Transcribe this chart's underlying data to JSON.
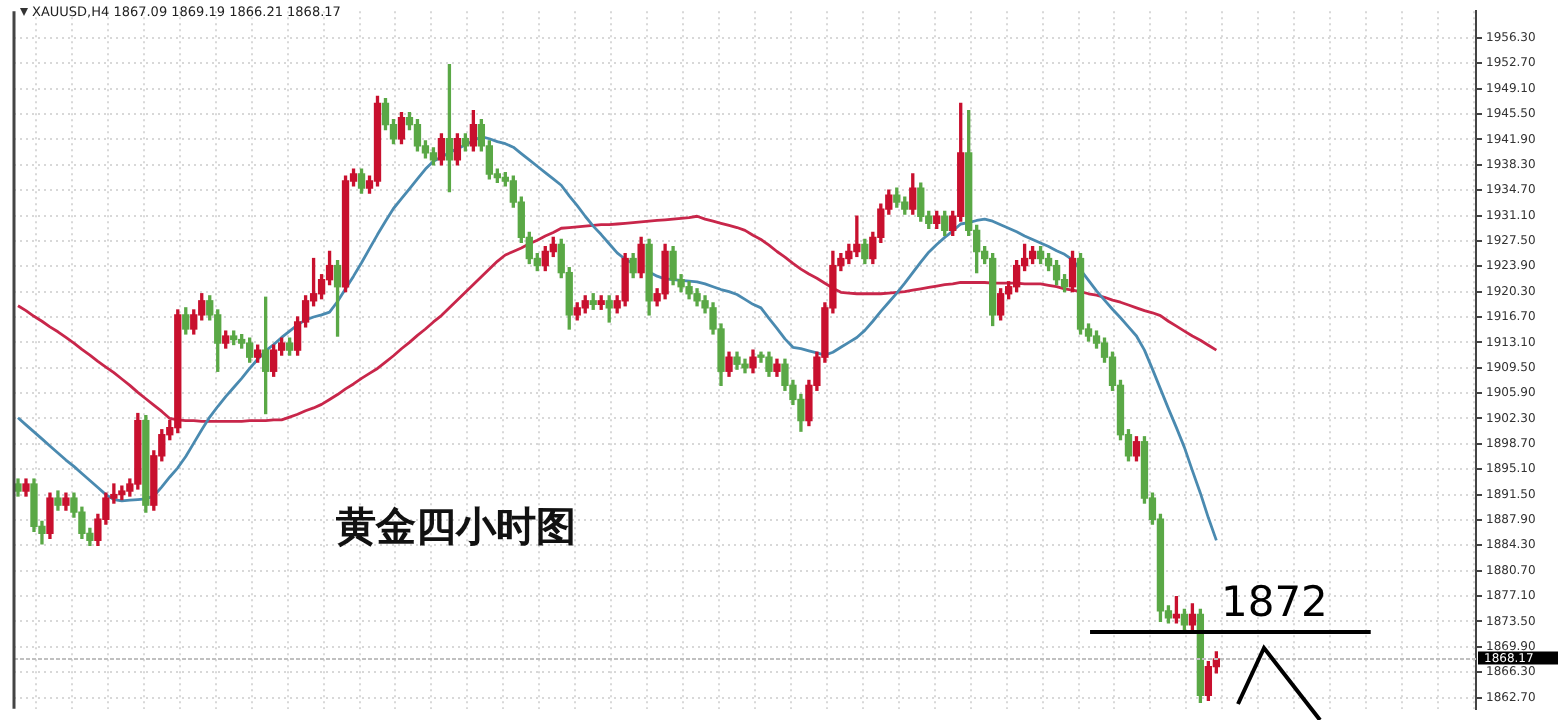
{
  "chart_data": {
    "type": "candlestick",
    "title": "XAUUSD,H4 1867.09 1869.19 1866.21 1868.17",
    "annotations": [
      "黄金四小时图"
    ],
    "categories": [
      null,
      null,
      null,
      null,
      null,
      null,
      null,
      null,
      null,
      null,
      null,
      null,
      null,
      null,
      null,
      null,
      null,
      null,
      null,
      null,
      null,
      null,
      null,
      null,
      null,
      null,
      null,
      null,
      null,
      null,
      null,
      null,
      null,
      null,
      null,
      null,
      null,
      null,
      null,
      null,
      null,
      null,
      null,
      null,
      null,
      null,
      null,
      null,
      null,
      null,
      null,
      null,
      null,
      null,
      null,
      null,
      null,
      null,
      null,
      null,
      null,
      null,
      null,
      null,
      null,
      null,
      null,
      null,
      null,
      null,
      null,
      null,
      null,
      null,
      null,
      null,
      null,
      null,
      null,
      null,
      null,
      null,
      null,
      null,
      null,
      null,
      null,
      null,
      null,
      null,
      null,
      null,
      null,
      null,
      null,
      null,
      null,
      null,
      null,
      null,
      null,
      null,
      null,
      null,
      null,
      null,
      null,
      null,
      null,
      null,
      null,
      null,
      null,
      null,
      null,
      null,
      null,
      null,
      null,
      null,
      null,
      null,
      null,
      null,
      null,
      null,
      null,
      null,
      null,
      null,
      null,
      null,
      null,
      null,
      null,
      null,
      null,
      null,
      null,
      null,
      null,
      null,
      null,
      null,
      null,
      null,
      null,
      null,
      null,
      null,
      null
    ],
    "ohlc": [
      [
        1893,
        1893.7,
        1891.3,
        1892
      ],
      [
        1892,
        1893.7,
        1891.3,
        1893
      ],
      [
        1893,
        1893.7,
        1886.3,
        1887
      ],
      [
        1887,
        1887.7,
        1884.5,
        1886
      ],
      [
        1886,
        1891.7,
        1885.3,
        1891
      ],
      [
        1891,
        1892,
        1889.3,
        1890
      ],
      [
        1890,
        1891.7,
        1889.3,
        1891
      ],
      [
        1891,
        1891.7,
        1888.3,
        1889
      ],
      [
        1889,
        1889.7,
        1885.3,
        1886
      ],
      [
        1886,
        1886.7,
        1884.3,
        1885
      ],
      [
        1885,
        1888.7,
        1884.3,
        1888
      ],
      [
        1888,
        1891.7,
        1887.3,
        1891
      ],
      [
        1891,
        1893,
        1890.3,
        1891.5
      ],
      [
        1891.5,
        1892.7,
        1890.8,
        1892
      ],
      [
        1892,
        1893.7,
        1891.3,
        1893
      ],
      [
        1893,
        1903,
        1892.3,
        1902
      ],
      [
        1902,
        1902.7,
        1889,
        1890
      ],
      [
        1890,
        1897.7,
        1889.3,
        1897
      ],
      [
        1897,
        1900.7,
        1896.3,
        1900
      ],
      [
        1900,
        1902,
        1899.3,
        1901
      ],
      [
        1901,
        1917.7,
        1900.3,
        1917
      ],
      [
        1917,
        1918,
        1914.3,
        1915
      ],
      [
        1915,
        1917.7,
        1914.3,
        1917
      ],
      [
        1917,
        1920,
        1916.3,
        1919
      ],
      [
        1919,
        1919.7,
        1916.3,
        1917
      ],
      [
        1917,
        1917.7,
        1909,
        1913
      ],
      [
        1913,
        1914.7,
        1912.3,
        1914
      ],
      [
        1914,
        1914.7,
        1912.8,
        1913.5
      ],
      [
        1913.5,
        1914.2,
        1912.3,
        1913
      ],
      [
        1913,
        1913.7,
        1910.3,
        1911
      ],
      [
        1911,
        1912.7,
        1910.3,
        1912
      ],
      [
        1912,
        1919.5,
        1903,
        1909
      ],
      [
        1909,
        1912.7,
        1908.3,
        1912
      ],
      [
        1912,
        1913.7,
        1911.3,
        1913
      ],
      [
        1913,
        1913.7,
        1911.3,
        1912
      ],
      [
        1912,
        1916.7,
        1911.3,
        1916
      ],
      [
        1916,
        1919.7,
        1915.3,
        1919
      ],
      [
        1919,
        1925,
        1918.3,
        1920
      ],
      [
        1920,
        1922.7,
        1919.3,
        1922
      ],
      [
        1922,
        1926,
        1921.3,
        1924
      ],
      [
        1924,
        1924.7,
        1914,
        1921
      ],
      [
        1921,
        1936.7,
        1920.3,
        1936
      ],
      [
        1936,
        1937.7,
        1935.3,
        1937
      ],
      [
        1937,
        1937.7,
        1934.3,
        1935
      ],
      [
        1935,
        1936.7,
        1934.3,
        1936
      ],
      [
        1936,
        1948,
        1935.3,
        1947
      ],
      [
        1947,
        1947.7,
        1943.3,
        1944
      ],
      [
        1944,
        1944.7,
        1941.3,
        1942
      ],
      [
        1942,
        1945.7,
        1941.3,
        1945
      ],
      [
        1945,
        1945.7,
        1943.3,
        1944
      ],
      [
        1944,
        1944.7,
        1940.3,
        1941
      ],
      [
        1941,
        1941.7,
        1939.3,
        1940
      ],
      [
        1940,
        1940.7,
        1938.3,
        1939
      ],
      [
        1939,
        1942.7,
        1938.3,
        1942
      ],
      [
        1942,
        1952.5,
        1934.5,
        1939
      ],
      [
        1939,
        1942.7,
        1938.3,
        1942
      ],
      [
        1942,
        1942.7,
        1940.3,
        1941
      ],
      [
        1941,
        1946,
        1940.3,
        1944
      ],
      [
        1944,
        1944.7,
        1940.3,
        1941
      ],
      [
        1941,
        1941.7,
        1936.3,
        1937
      ],
      [
        1937,
        1937.7,
        1935.8,
        1936.5
      ],
      [
        1936.5,
        1937.2,
        1935.3,
        1936
      ],
      [
        1936,
        1936.7,
        1932.3,
        1933
      ],
      [
        1933,
        1933.7,
        1927.3,
        1928
      ],
      [
        1928,
        1928.7,
        1924.3,
        1925
      ],
      [
        1925,
        1925.7,
        1923.3,
        1924
      ],
      [
        1924,
        1926.7,
        1923.3,
        1926
      ],
      [
        1926,
        1928,
        1925.3,
        1927
      ],
      [
        1927,
        1927.7,
        1922.3,
        1923
      ],
      [
        1923,
        1923.7,
        1915,
        1917
      ],
      [
        1917,
        1918.7,
        1916.3,
        1918
      ],
      [
        1918,
        1919.7,
        1917.3,
        1919
      ],
      [
        1919,
        1920,
        1917.8,
        1918.5
      ],
      [
        1918.5,
        1919.7,
        1917.8,
        1919
      ],
      [
        1919,
        1919.7,
        1916,
        1918
      ],
      [
        1918,
        1919.7,
        1917.3,
        1919
      ],
      [
        1919,
        1925.7,
        1918.3,
        1925
      ],
      [
        1925,
        1925.7,
        1922.3,
        1923
      ],
      [
        1923,
        1928,
        1922.3,
        1927
      ],
      [
        1927,
        1927.7,
        1917,
        1919
      ],
      [
        1919,
        1920.7,
        1918.3,
        1920
      ],
      [
        1920,
        1927,
        1919.3,
        1926
      ],
      [
        1926,
        1926.7,
        1921.3,
        1922
      ],
      [
        1922,
        1922.7,
        1920.3,
        1921
      ],
      [
        1921,
        1921.7,
        1919.3,
        1920
      ],
      [
        1920,
        1920.7,
        1918.3,
        1919
      ],
      [
        1919,
        1919.7,
        1917.3,
        1918
      ],
      [
        1918,
        1918.7,
        1914.3,
        1915
      ],
      [
        1915,
        1915.7,
        1907,
        1909
      ],
      [
        1909,
        1911.7,
        1908.3,
        1911
      ],
      [
        1911,
        1911.7,
        1909.3,
        1910
      ],
      [
        1910,
        1910.7,
        1908.8,
        1909.5
      ],
      [
        1909.5,
        1912,
        1908.8,
        1911
      ],
      [
        1911,
        1911.7,
        1910.3,
        1911
      ],
      [
        1911,
        1911.7,
        1908.3,
        1909
      ],
      [
        1909,
        1910.7,
        1908.3,
        1910
      ],
      [
        1910,
        1910.7,
        1906.3,
        1907
      ],
      [
        1907,
        1907.7,
        1904.3,
        1905
      ],
      [
        1905,
        1905.7,
        1900.5,
        1902
      ],
      [
        1902,
        1907.7,
        1901.3,
        1907
      ],
      [
        1907,
        1911.7,
        1906.3,
        1911
      ],
      [
        1911,
        1918.7,
        1910.3,
        1918
      ],
      [
        1918,
        1926,
        1917.3,
        1924
      ],
      [
        1924,
        1925.7,
        1923.3,
        1925
      ],
      [
        1925,
        1927,
        1924.3,
        1926
      ],
      [
        1926,
        1931,
        1925.3,
        1927
      ],
      [
        1927,
        1927.7,
        1924.3,
        1925
      ],
      [
        1925,
        1928.7,
        1924.3,
        1928
      ],
      [
        1928,
        1932.7,
        1927.3,
        1932
      ],
      [
        1932,
        1934.7,
        1931.3,
        1934
      ],
      [
        1934,
        1935,
        1932.3,
        1933
      ],
      [
        1933,
        1933.7,
        1931.3,
        1932
      ],
      [
        1932,
        1937,
        1931.3,
        1935
      ],
      [
        1935,
        1935.7,
        1930.3,
        1931
      ],
      [
        1931,
        1931.7,
        1929.3,
        1930
      ],
      [
        1930,
        1931.7,
        1929.3,
        1931
      ],
      [
        1931,
        1931.7,
        1928.3,
        1929
      ],
      [
        1929,
        1931.7,
        1928.3,
        1931
      ],
      [
        1931,
        1947,
        1930.3,
        1940
      ],
      [
        1940,
        1946,
        1928.3,
        1929
      ],
      [
        1929,
        1929.7,
        1923,
        1926
      ],
      [
        1926,
        1926.7,
        1924.3,
        1925
      ],
      [
        1925,
        1925.7,
        1915.5,
        1917
      ],
      [
        1917,
        1920.7,
        1916.3,
        1920
      ],
      [
        1920,
        1921.7,
        1919.3,
        1921
      ],
      [
        1921,
        1924.7,
        1920.3,
        1924
      ],
      [
        1924,
        1927,
        1923.3,
        1925
      ],
      [
        1925,
        1926.7,
        1924.3,
        1926
      ],
      [
        1926,
        1926.7,
        1924.3,
        1925
      ],
      [
        1925,
        1925.7,
        1923.3,
        1924
      ],
      [
        1924,
        1924.7,
        1921.3,
        1922
      ],
      [
        1922,
        1922.7,
        1920.3,
        1921
      ],
      [
        1921,
        1926,
        1920.3,
        1925
      ],
      [
        1925,
        1925.7,
        1914.3,
        1915
      ],
      [
        1915,
        1915.7,
        1913.3,
        1914
      ],
      [
        1914,
        1914.7,
        1912.3,
        1913
      ],
      [
        1913,
        1913.7,
        1910.3,
        1911
      ],
      [
        1911,
        1911.7,
        1906.3,
        1907
      ],
      [
        1907,
        1907.7,
        1899.3,
        1900
      ],
      [
        1900,
        1900.7,
        1896.3,
        1897
      ],
      [
        1897,
        1899.7,
        1896.3,
        1899
      ],
      [
        1899,
        1899.7,
        1890.3,
        1891
      ],
      [
        1891,
        1891.7,
        1887.3,
        1888
      ],
      [
        1888,
        1888.7,
        1873.5,
        1875
      ],
      [
        1875,
        1875.7,
        1873.3,
        1874
      ],
      [
        1874,
        1877,
        1873.3,
        1874.5
      ],
      [
        1874.5,
        1875.2,
        1872.3,
        1873
      ],
      [
        1873,
        1876,
        1872.3,
        1874.5
      ],
      [
        1874.5,
        1875.2,
        1862,
        1863
      ],
      [
        1863,
        1867.8,
        1862.3,
        1867.09
      ],
      [
        1867.09,
        1869.19,
        1866.21,
        1868.17
      ]
    ],
    "colors": [
      "#5aa846",
      "#c8102e",
      "#5aa846",
      "#5aa846",
      "#c8102e",
      "#5aa846",
      "#c8102e",
      "#5aa846",
      "#5aa846",
      "#5aa846",
      "#c8102e",
      "#c8102e",
      "#c8102e",
      "#c8102e",
      "#c8102e",
      "#c8102e",
      "#5aa846",
      "#c8102e",
      "#c8102e",
      "#c8102e",
      "#c8102e",
      "#5aa846",
      "#c8102e",
      "#c8102e",
      "#5aa846",
      "#5aa846",
      "#c8102e",
      "#5aa846",
      "#5aa846",
      "#5aa846",
      "#c8102e",
      "#5aa846",
      "#c8102e",
      "#c8102e",
      "#5aa846",
      "#c8102e",
      "#c8102e",
      "#c8102e",
      "#c8102e",
      "#c8102e",
      "#5aa846",
      "#c8102e",
      "#c8102e",
      "#5aa846",
      "#c8102e",
      "#c8102e",
      "#5aa846",
      "#5aa846",
      "#c8102e",
      "#5aa846",
      "#5aa846",
      "#5aa846",
      "#5aa846",
      "#c8102e",
      "#5aa846",
      "#c8102e",
      "#5aa846",
      "#c8102e",
      "#5aa846",
      "#5aa846",
      "#5aa846",
      "#5aa846",
      "#5aa846",
      "#5aa846",
      "#5aa846",
      "#5aa846",
      "#c8102e",
      "#c8102e",
      "#5aa846",
      "#5aa846",
      "#c8102e",
      "#c8102e",
      "#5aa846",
      "#c8102e",
      "#5aa846",
      "#c8102e",
      "#c8102e",
      "#5aa846",
      "#c8102e",
      "#5aa846",
      "#c8102e",
      "#c8102e",
      "#5aa846",
      "#5aa846",
      "#5aa846",
      "#5aa846",
      "#5aa846",
      "#5aa846",
      "#5aa846",
      "#c8102e",
      "#5aa846",
      "#5aa846",
      "#c8102e",
      "#5aa846",
      "#5aa846",
      "#c8102e",
      "#5aa846",
      "#5aa846",
      "#5aa846",
      "#c8102e",
      "#c8102e",
      "#c8102e",
      "#c8102e",
      "#c8102e",
      "#c8102e",
      "#c8102e",
      "#5aa846",
      "#c8102e",
      "#c8102e",
      "#c8102e",
      "#5aa846",
      "#5aa846",
      "#c8102e",
      "#5aa846",
      "#5aa846",
      "#c8102e",
      "#5aa846",
      "#c8102e",
      "#c8102e",
      "#5aa846",
      "#5aa846",
      "#5aa846",
      "#5aa846",
      "#c8102e",
      "#c8102e",
      "#c8102e",
      "#c8102e",
      "#c8102e",
      "#5aa846",
      "#5aa846",
      "#5aa846",
      "#5aa846",
      "#c8102e",
      "#5aa846",
      "#5aa846",
      "#5aa846",
      "#5aa846",
      "#5aa846",
      "#5aa846",
      "#5aa846",
      "#c8102e",
      "#5aa846",
      "#5aa846",
      "#5aa846",
      "#5aa846",
      "#c8102e",
      "#5aa846",
      "#c8102e",
      "#5aa846",
      "#c8102e",
      "#c8102e"
    ],
    "series": [
      {
        "type": "line",
        "color": "#4a8ab0",
        "values": [
          1902.4,
          1901.4,
          1900.4,
          1899.4,
          1898.4,
          1897.4,
          1896.4,
          1895.5,
          1894.5,
          1893.5,
          1892.5,
          1891.5,
          1890.8,
          1890.6,
          1890.7,
          1890.8,
          1890.9,
          1891.3,
          1892.6,
          1894,
          1895.3,
          1896.9,
          1898.8,
          1900.7,
          1902.5,
          1904,
          1905.4,
          1906.7,
          1908,
          1909.4,
          1910.7,
          1911.9,
          1912.8,
          1913.8,
          1914.7,
          1915.6,
          1916.3,
          1916.7,
          1917,
          1917.4,
          1918.9,
          1920.7,
          1922.5,
          1924.4,
          1926.4,
          1928.4,
          1930.3,
          1932.1,
          1933.5,
          1934.9,
          1936.3,
          1937.7,
          1938.8,
          1939.4,
          1940,
          1940.6,
          1941.1,
          1941.7,
          1942.3,
          1942,
          1941.6,
          1941.3,
          1940.8,
          1939.9,
          1939,
          1938.1,
          1937.2,
          1936.3,
          1935.4,
          1933.9,
          1932.5,
          1931,
          1929.6,
          1928.4,
          1927.1,
          1925.8,
          1924.9,
          1924.3,
          null,
          1923.1,
          1922.5,
          1922.1,
          1922,
          1921.9,
          1921.8,
          1921.7,
          1921.4,
          1921,
          1920.6,
          1920.3,
          1919.9,
          1919.2,
          1918.5,
          1918,
          1916.5,
          1915.1,
          1913.6,
          1912.4,
          1912.2,
          1911.9,
          1911.6,
          1911.3,
          1911.7,
          1912.4,
          1913.1,
          1913.8,
          1914.8,
          1916.1,
          1917.5,
          1918.8,
          1920.1,
          1921.5,
          1923,
          1924.5,
          1925.9,
          1927,
          1928,
          1928.9,
          1929.9,
          1930.1,
          1930.4,
          1930.6,
          1930.3,
          1929.8,
          1929.3,
          1928.8,
          1928.2,
          1927.7,
          1927.2,
          1926.7,
          1926.1,
          1925.6,
          1924.8,
          1923.4,
          1921.9,
          1920.4,
          1919.1,
          1917.8,
          1916.6,
          1915.3,
          1914,
          1912,
          1909.3,
          1906.5,
          1903.7,
          1901,
          1898.2,
          1894.9,
          1891.7,
          1888.2,
          1885
        ]
      },
      {
        "type": "line",
        "color": "#c8264a",
        "values": [
          1918.3,
          1917.6,
          1916.8,
          1916.1,
          1915.3,
          1914.6,
          1913.8,
          1913,
          1912.1,
          1911.3,
          1910.4,
          1909.6,
          1908.8,
          1907.9,
          1907,
          1906,
          1905.1,
          1904.2,
          1903.3,
          1902.3,
          1902.1,
          1902,
          1902,
          1901.9,
          1901.9,
          1901.9,
          1901.9,
          1901.9,
          1901.9,
          1902,
          1902,
          1902,
          1902.1,
          1902.1,
          1902.5,
          1902.9,
          1903.4,
          1903.8,
          1904.3,
          1905,
          1905.7,
          1906.5,
          1907.2,
          1908,
          1908.7,
          1909.4,
          1910.3,
          1911.2,
          1912.2,
          1913.1,
          1914.1,
          1915,
          1916,
          1916.9,
          1918,
          1919.1,
          1920.2,
          1921.3,
          1922.4,
          1923.5,
          1924.6,
          1925.5,
          1926,
          1926.5,
          1927.1,
          1927.6,
          1928.2,
          1928.7,
          1929.3,
          1929.4,
          1929.5,
          1929.6,
          1929.7,
          1929.8,
          1929.8,
          1929.9,
          1930,
          1930.1,
          1930.2,
          1930.3,
          1930.4,
          1930.5,
          1930.6,
          1930.7,
          1930.8,
          1931,
          1930.6,
          1930.3,
          1930,
          1929.7,
          1929.4,
          1929,
          1928.3,
          1927.7,
          1926.9,
          1926,
          1925.2,
          1924.3,
          1923.5,
          1922.8,
          1922.2,
          1921.5,
          1920.8,
          1920.2,
          1920.1,
          1920,
          1920,
          1920,
          1920,
          1920.1,
          1920.2,
          1920.3,
          1920.5,
          1920.7,
          1920.9,
          1921.1,
          1921.3,
          1921.4,
          1921.6,
          1921.6,
          1921.6,
          1921.6,
          1921.5,
          1921.5,
          1921.5,
          1921.5,
          1921.4,
          1921.4,
          1921.4,
          1921.2,
          1921,
          1920.7,
          1920.5,
          1920.3,
          1920,
          1919.8,
          1919.5,
          1919.1,
          1918.8,
          1918.4,
          1918,
          1917.6,
          1917.3,
          1916.9,
          1916.1,
          1915.4,
          1914.7,
          1914,
          1913.4,
          1912.7,
          1912
        ]
      }
    ],
    "ylim": [
      1861.1,
      1960.1
    ],
    "yticks": [
      {
        "value": 1956.3,
        "label": "1956.30"
      },
      {
        "value": 1952.7,
        "label": "1952.70"
      },
      {
        "value": 1949.1,
        "label": "1949.10"
      },
      {
        "value": 1945.5,
        "label": "1945.50"
      },
      {
        "value": 1941.9,
        "label": "1941.90"
      },
      {
        "value": 1938.3,
        "label": "1938.30"
      },
      {
        "value": 1934.7,
        "label": "1934.70"
      },
      {
        "value": 1931.1,
        "label": "1931.10"
      },
      {
        "value": 1927.5,
        "label": "1927.50"
      },
      {
        "value": 1923.9,
        "label": "1923.90"
      },
      {
        "value": 1920.3,
        "label": "1920.30"
      },
      {
        "value": 1916.7,
        "label": "1916.70"
      },
      {
        "value": 1913.1,
        "label": "1913.10"
      },
      {
        "value": 1909.5,
        "label": "1909.50"
      },
      {
        "value": 1905.9,
        "label": "1905.90"
      },
      {
        "value": 1902.3,
        "label": "1902.30"
      },
      {
        "value": 1898.7,
        "label": "1898.70"
      },
      {
        "value": 1895.1,
        "label": "1895.10"
      },
      {
        "value": 1891.5,
        "label": "1891.50"
      },
      {
        "value": 1887.9,
        "label": "1887.90"
      },
      {
        "value": 1884.3,
        "label": "1884.30"
      },
      {
        "value": 1880.7,
        "label": "1880.70"
      },
      {
        "value": 1877.1,
        "label": "1877.10"
      },
      {
        "value": 1873.5,
        "label": "1873.50"
      },
      {
        "value": 1869.9,
        "label": "1869.90"
      },
      {
        "value": 1866.3,
        "label": "1866.30"
      },
      {
        "value": 1862.7,
        "label": "1862.70"
      }
    ],
    "grid": true,
    "tick_labels": "y",
    "ref_lines": [
      {
        "axis": "y",
        "value": 1872,
        "label": "1872",
        "color": "#000000",
        "line_style": "solid"
      },
      {
        "axis": "y",
        "value": 1868.17,
        "label": "1868.17",
        "color": "#c0c0c0",
        "line_style": "dotted"
      }
    ]
  }
}
